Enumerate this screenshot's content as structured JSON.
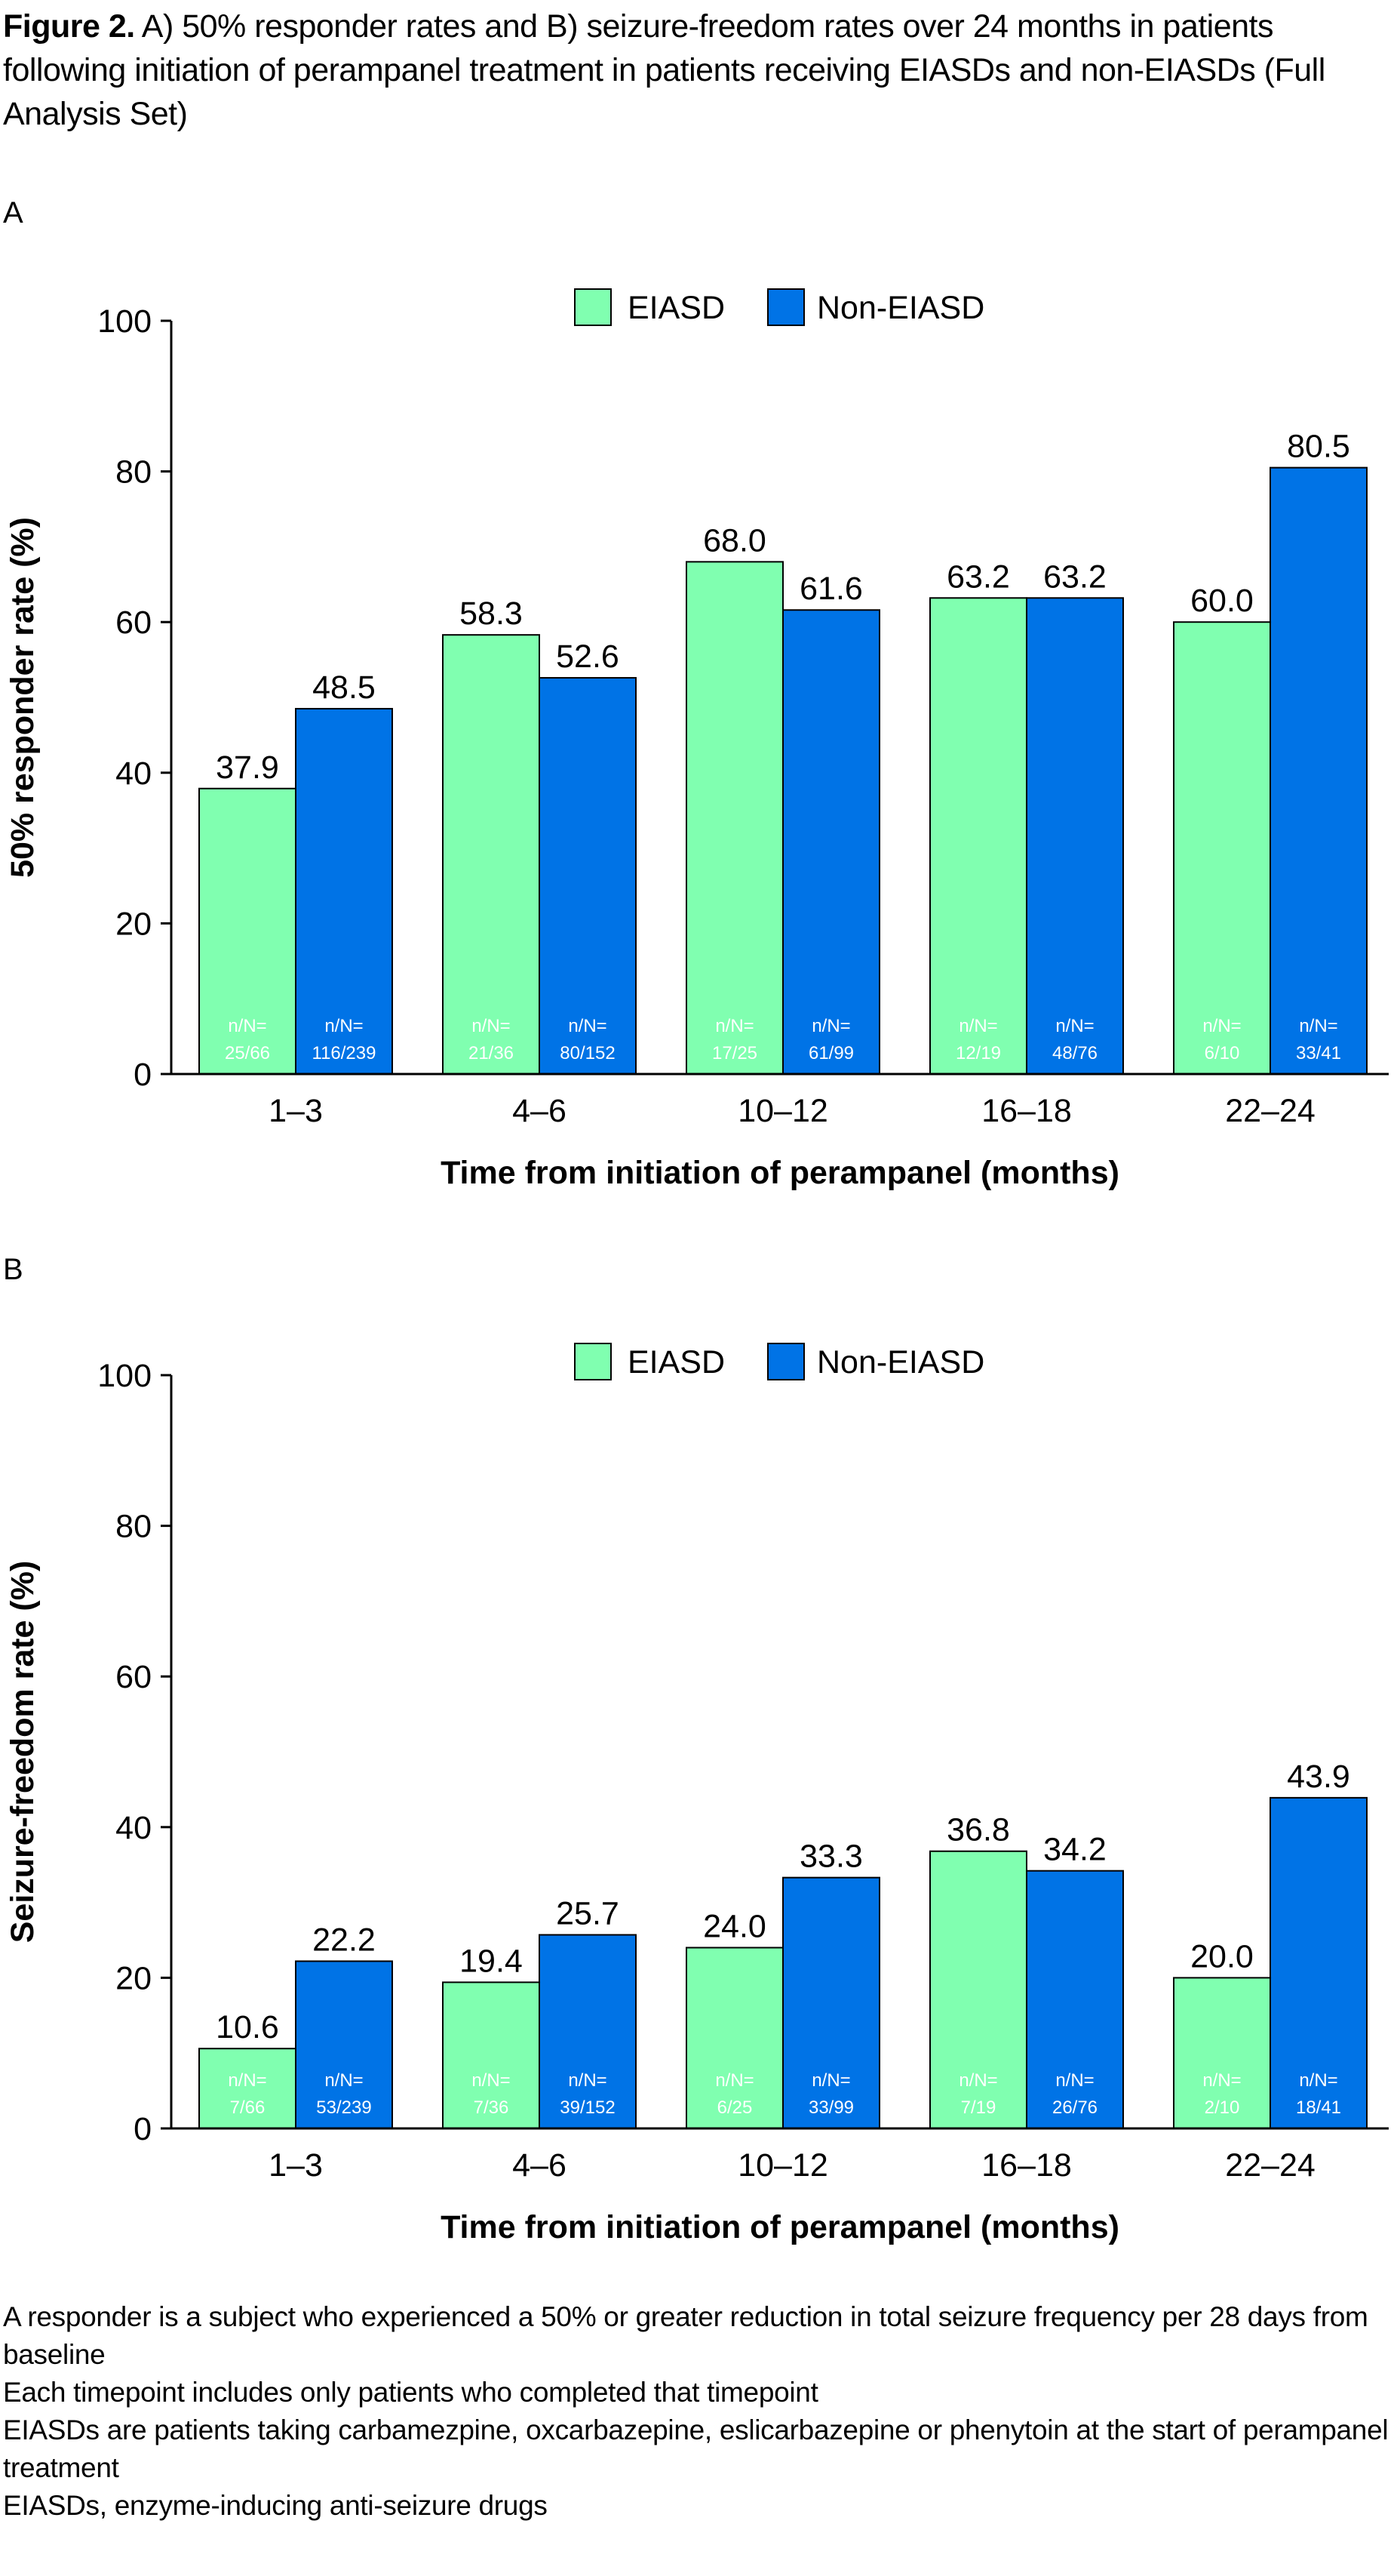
{
  "figure": {
    "label": "Figure 2.",
    "caption": "A) 50% responder rates and B) seizure-freedom rates over 24 months in patients following initiation of perampanel treatment in patients receiving EIASDs and non-EIASDs (Full Analysis Set)"
  },
  "colors": {
    "EIASD": "#80FFB0",
    "Non-EIASD": "#0073E6"
  },
  "chart_data": [
    {
      "panel": "A",
      "type": "bar",
      "categories": [
        "1–3",
        "4–6",
        "10–12",
        "16–18",
        "22–24"
      ],
      "xlabel": "Time from initiation of perampanel (months)",
      "ylabel": "50% responder rate (%)",
      "ylim": [
        0,
        100
      ],
      "yticks": [
        "0",
        "20",
        "40",
        "60",
        "80",
        "100"
      ],
      "legend": "top-center",
      "grid": false,
      "series": [
        {
          "name": "EIASD",
          "values": [
            37.9,
            58.3,
            68.0,
            63.2,
            60.0
          ],
          "labels": [
            "37.9",
            "58.3",
            "68.0",
            "63.2",
            "60.0"
          ],
          "n_prefix": "n/N=",
          "nN": [
            "25/66",
            "21/36",
            "17/25",
            "12/19",
            "6/10"
          ]
        },
        {
          "name": "Non-EIASD",
          "values": [
            48.5,
            52.6,
            61.6,
            63.2,
            80.5
          ],
          "labels": [
            "48.5",
            "52.6",
            "61.6",
            "63.2",
            "80.5"
          ],
          "n_prefix": "n/N=",
          "nN": [
            "116/239",
            "80/152",
            "61/99",
            "48/76",
            "33/41"
          ]
        }
      ]
    },
    {
      "panel": "B",
      "type": "bar",
      "categories": [
        "1–3",
        "4–6",
        "10–12",
        "16–18",
        "22–24"
      ],
      "xlabel": "Time from initiation of perampanel (months)",
      "ylabel": "Seizure-freedom rate (%)",
      "ylim": [
        0,
        100
      ],
      "yticks": [
        "0",
        "20",
        "40",
        "60",
        "80",
        "100"
      ],
      "legend": "top-center",
      "grid": false,
      "series": [
        {
          "name": "EIASD",
          "values": [
            10.6,
            19.4,
            24.0,
            36.8,
            20.0
          ],
          "labels": [
            "10.6",
            "19.4",
            "24.0",
            "36.8",
            "20.0"
          ],
          "n_prefix": "n/N=",
          "nN": [
            "7/66",
            "7/36",
            "6/25",
            "7/19",
            "2/10"
          ]
        },
        {
          "name": "Non-EIASD",
          "values": [
            22.2,
            25.7,
            33.3,
            34.2,
            43.9
          ],
          "labels": [
            "22.2",
            "25.7",
            "33.3",
            "34.2",
            "43.9"
          ],
          "n_prefix": "n/N=",
          "nN": [
            "53/239",
            "39/152",
            "33/99",
            "26/76",
            "18/41"
          ]
        }
      ]
    }
  ],
  "footnotes": [
    "A responder is a subject who experienced a 50% or greater reduction in total seizure frequency per 28 days from baseline",
    "Each timepoint includes only patients who completed that timepoint",
    "EIASDs are patients taking carbamezpine, oxcarbazepine, eslicarbazepine or phenytoin at the start of perampanel treatment",
    "EIASDs, enzyme-inducing anti-seizure drugs"
  ]
}
